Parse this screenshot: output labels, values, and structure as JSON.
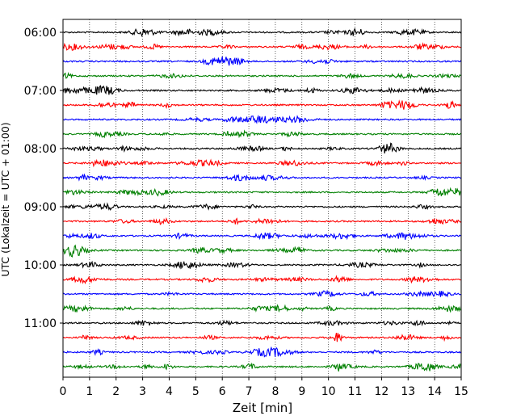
{
  "chart_data": {
    "type": "line",
    "title": "",
    "xlabel": "Zeit  [min]",
    "ylabel": "UTC (Lokalzeit = UTC + 01:00)",
    "xlim": [
      0,
      15
    ],
    "x_ticks": [
      "0",
      "1",
      "2",
      "3",
      "4",
      "5",
      "6",
      "7",
      "8",
      "9",
      "10",
      "11",
      "12",
      "13",
      "14",
      "15"
    ],
    "y_ticks": [
      "06:00",
      "07:00",
      "08:00",
      "09:00",
      "10:00",
      "11:00"
    ],
    "grid": "vertical dotted at each minute",
    "trace_interval_min": 15,
    "first_trace": "06:00",
    "trace_count": 24,
    "trace_colors": [
      "#000000",
      "#ff0000",
      "#0000ff",
      "#008000"
    ]
  }
}
